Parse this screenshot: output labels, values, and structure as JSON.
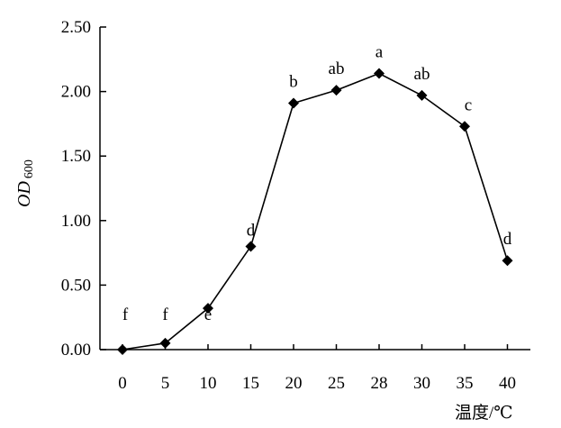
{
  "chart_data": {
    "type": "line",
    "categories": [
      "0",
      "5",
      "10",
      "15",
      "20",
      "25",
      "28",
      "30",
      "35",
      "40"
    ],
    "series": [
      {
        "values": [
          0.0,
          0.05,
          0.32,
          0.8,
          1.91,
          2.01,
          2.14,
          1.97,
          1.73,
          0.69
        ],
        "labels": [
          "f",
          "f",
          "e",
          "d",
          "b",
          "ab",
          "a",
          "ab",
          "c",
          "d"
        ],
        "marker": "diamond",
        "color": "#000000"
      }
    ],
    "y_ticks": [
      "0.00",
      "0.50",
      "1.00",
      "1.50",
      "2.00",
      "2.50"
    ],
    "ylim": [
      0,
      2.5
    ],
    "ylabel_main": "OD",
    "ylabel_sub": "600",
    "xlabel": "温度/℃",
    "grid": false,
    "legend": "none"
  }
}
